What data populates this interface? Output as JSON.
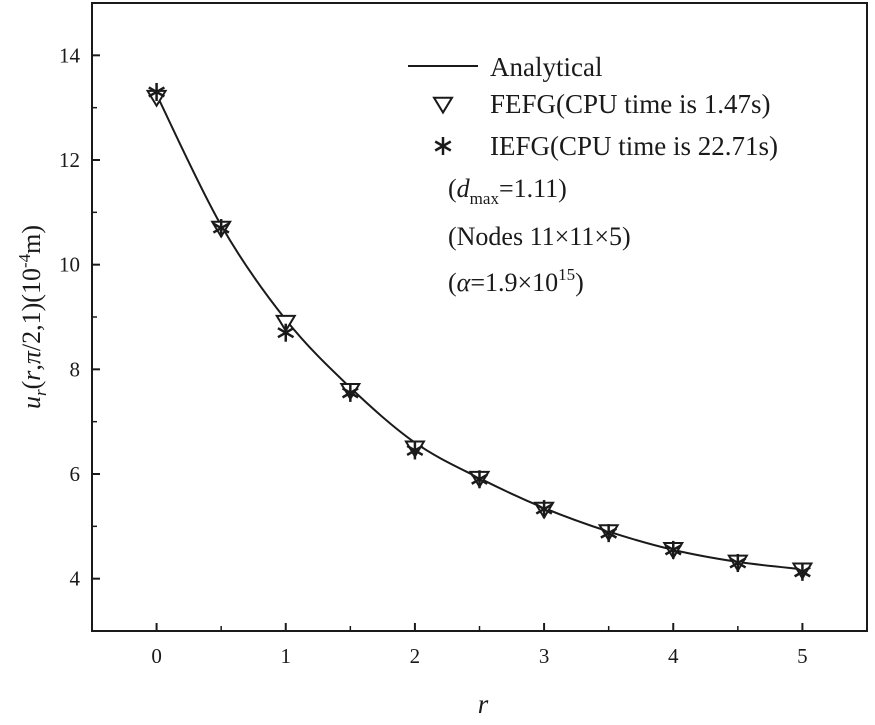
{
  "chart_data": {
    "type": "line",
    "title": "",
    "xlabel": "r",
    "ylabel": "u_r(r,π/2,1)(10^-4 m)",
    "xlim": [
      -0.5,
      5.5
    ],
    "ylim": [
      3,
      15
    ],
    "x_ticks": [
      "0",
      "1",
      "2",
      "3",
      "4",
      "5"
    ],
    "y_ticks": [
      "4",
      "6",
      "8",
      "10",
      "12",
      "14"
    ],
    "grid": false,
    "legend_position": "top-right",
    "x": [
      0,
      0.5,
      1,
      1.5,
      2,
      2.5,
      3,
      3.5,
      4,
      4.5,
      5
    ],
    "series": [
      {
        "name": "Analytical",
        "style": "line",
        "color": "#1a1a1a",
        "values": [
          13.25,
          10.75,
          8.95,
          7.65,
          6.6,
          5.92,
          5.35,
          4.9,
          4.55,
          4.32,
          4.18
        ]
      },
      {
        "name": "FEFG(CPU time is 1.47s)",
        "style": "triangle-down",
        "color": "#1a1a1a",
        "values": [
          13.2,
          10.7,
          8.9,
          7.6,
          6.5,
          5.92,
          5.33,
          4.9,
          4.56,
          4.32,
          4.17
        ]
      },
      {
        "name": "IEFG(CPU time is 22.71s)",
        "style": "asterisk",
        "color": "#1a1a1a",
        "values": [
          13.3,
          10.7,
          8.7,
          7.55,
          6.45,
          5.9,
          5.33,
          4.87,
          4.55,
          4.3,
          4.13
        ]
      }
    ],
    "annotations": {
      "dmax_value": "1.11",
      "nodes": "(Nodes 11×11×5)",
      "alpha_mantissa": "1.9×10",
      "alpha_exponent": "15"
    }
  }
}
